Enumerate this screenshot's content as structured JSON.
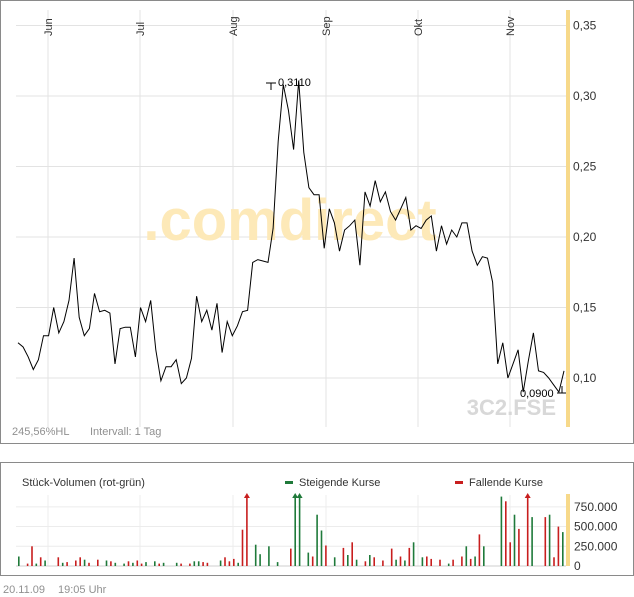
{
  "chart_data": [
    {
      "type": "line",
      "x_tick_labels": [
        "Jun",
        "Jul",
        "Aug",
        "Sep",
        "Okt",
        "Nov"
      ],
      "y_tick_labels": [
        "0,35",
        "0,30",
        "0,25",
        "0,20",
        "0,15",
        "0,10"
      ],
      "ylim": [
        0.065,
        0.36
      ],
      "grid": true,
      "watermark": ".comdirect",
      "symbol": "3C2.FSE",
      "footer_left": "245,56%HL",
      "footer_interval": "Intervall: 1 Tag",
      "max_label": "0,3110",
      "min_label": "0,0900",
      "series": [
        {
          "values": [
            0.125,
            0.122,
            0.115,
            0.106,
            0.113,
            0.13,
            0.13,
            0.15,
            0.132,
            0.14,
            0.155,
            0.185,
            0.143,
            0.13,
            0.135,
            0.16,
            0.147,
            0.148,
            0.146,
            0.11,
            0.135,
            0.136,
            0.136,
            0.115,
            0.15,
            0.14,
            0.155,
            0.12,
            0.098,
            0.108,
            0.108,
            0.113,
            0.096,
            0.1,
            0.114,
            0.158,
            0.14,
            0.148,
            0.134,
            0.153,
            0.118,
            0.14,
            0.13,
            0.137,
            0.147,
            0.148,
            0.182,
            0.184,
            0.183,
            0.182,
            0.206,
            0.268,
            0.308,
            0.29,
            0.262,
            0.311,
            0.26,
            0.235,
            0.23,
            0.23,
            0.192,
            0.22,
            0.21,
            0.19,
            0.205,
            0.208,
            0.212,
            0.18,
            0.232,
            0.222,
            0.24,
            0.225,
            0.232,
            0.218,
            0.212,
            0.22,
            0.228,
            0.205,
            0.208,
            0.206,
            0.212,
            0.215,
            0.19,
            0.208,
            0.195,
            0.205,
            0.2,
            0.21,
            0.21,
            0.19,
            0.18,
            0.186,
            0.185,
            0.168,
            0.11,
            0.125,
            0.1,
            0.11,
            0.12,
            0.09,
            0.112,
            0.132,
            0.105,
            0.104,
            0.1,
            0.095,
            0.09,
            0.105
          ]
        }
      ]
    },
    {
      "type": "bar",
      "title": "Stück-Volumen (rot-grün)",
      "legend": [
        {
          "label": "Steigende Kurse",
          "color": "#1f7a3a"
        },
        {
          "label": "Fallende Kurse",
          "color": "#c81e1e"
        }
      ],
      "y_tick_labels": [
        "750.000",
        "500.000",
        "250.000",
        "0"
      ],
      "ylim": [
        0,
        900000
      ],
      "values": [
        120000,
        0,
        30000,
        250000,
        30000,
        110000,
        70000,
        0,
        0,
        110000,
        40000,
        50000,
        0,
        70000,
        110000,
        80000,
        40000,
        0,
        80000,
        0,
        70000,
        60000,
        40000,
        0,
        30000,
        60000,
        40000,
        70000,
        30000,
        50000,
        0,
        60000,
        30000,
        40000,
        0,
        0,
        40000,
        30000,
        0,
        30000,
        60000,
        60000,
        50000,
        40000,
        0,
        0,
        70000,
        110000,
        60000,
        90000,
        40000,
        460000,
        900000,
        0,
        270000,
        150000,
        0,
        250000,
        0,
        50000,
        0,
        0,
        220000,
        900000,
        900000,
        0,
        170000,
        120000,
        650000,
        450000,
        260000,
        0,
        110000,
        0,
        230000,
        140000,
        300000,
        80000,
        0,
        60000,
        140000,
        110000,
        0,
        70000,
        0,
        220000,
        80000,
        120000,
        70000,
        230000,
        300000,
        0,
        110000,
        120000,
        90000,
        0,
        80000,
        0,
        30000,
        80000,
        0,
        120000,
        250000,
        90000,
        120000,
        400000,
        250000,
        0,
        0,
        0,
        880000,
        820000,
        300000,
        650000,
        470000,
        0,
        900000,
        620000,
        0,
        0,
        620000,
        650000,
        110000,
        500000,
        430000
      ],
      "up_days": [
        0,
        4,
        6,
        10,
        12,
        15,
        17,
        20,
        22,
        24,
        26,
        29,
        31,
        33,
        36,
        40,
        41,
        44,
        46,
        50,
        54,
        55,
        57,
        59,
        63,
        64,
        66,
        68,
        69,
        72,
        75,
        77,
        80,
        84,
        86,
        88,
        90,
        92,
        95,
        98,
        102,
        104,
        106,
        110,
        113,
        117,
        121,
        124
      ]
    },
    {
      "type": "label",
      "date": "20.11.09",
      "time": "19:05 Uhr"
    }
  ]
}
